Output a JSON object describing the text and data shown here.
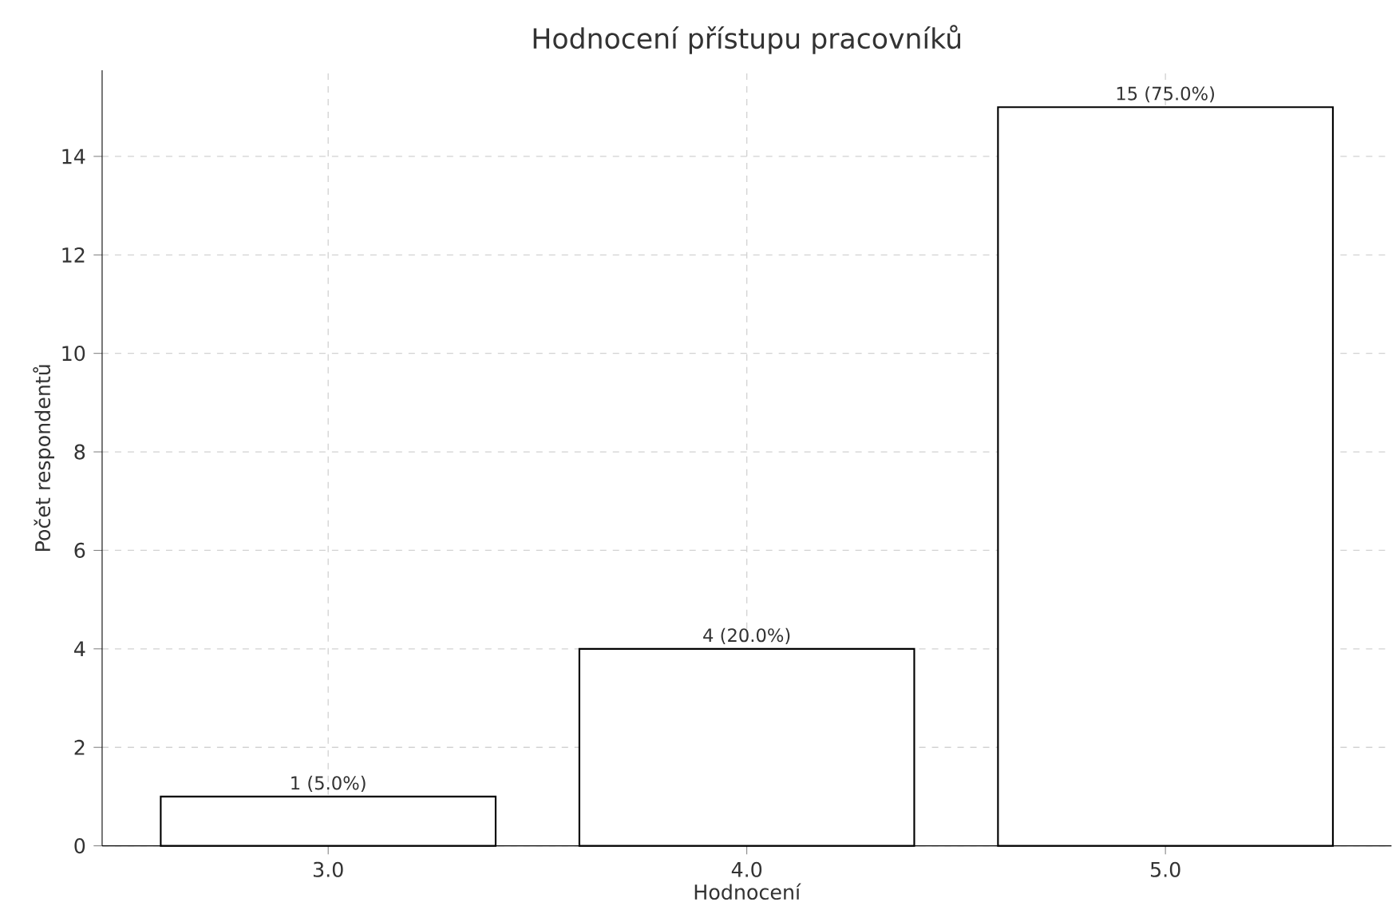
{
  "chart_data": {
    "type": "bar",
    "title": "Hodnocení přístupu pracovníků",
    "xlabel": "Hodnocení",
    "ylabel": "Počet respondentů",
    "x": [
      3,
      4,
      5
    ],
    "values": [
      1,
      4,
      15
    ],
    "value_labels": [
      "1 (5.0%)",
      "4 (20.0%)",
      "15 (75.0%)"
    ],
    "color": "#ffffff",
    "xlim": [
      2.46,
      5.54
    ],
    "xticks": [
      {
        "value": 3,
        "label": "3.0"
      },
      {
        "value": 4,
        "label": "4.0"
      },
      {
        "value": 5,
        "label": "5.0"
      }
    ],
    "ylim": [
      0,
      15.75
    ],
    "yticks": [
      0,
      2,
      4,
      6,
      8,
      10,
      12,
      14
    ],
    "grid": true
  }
}
